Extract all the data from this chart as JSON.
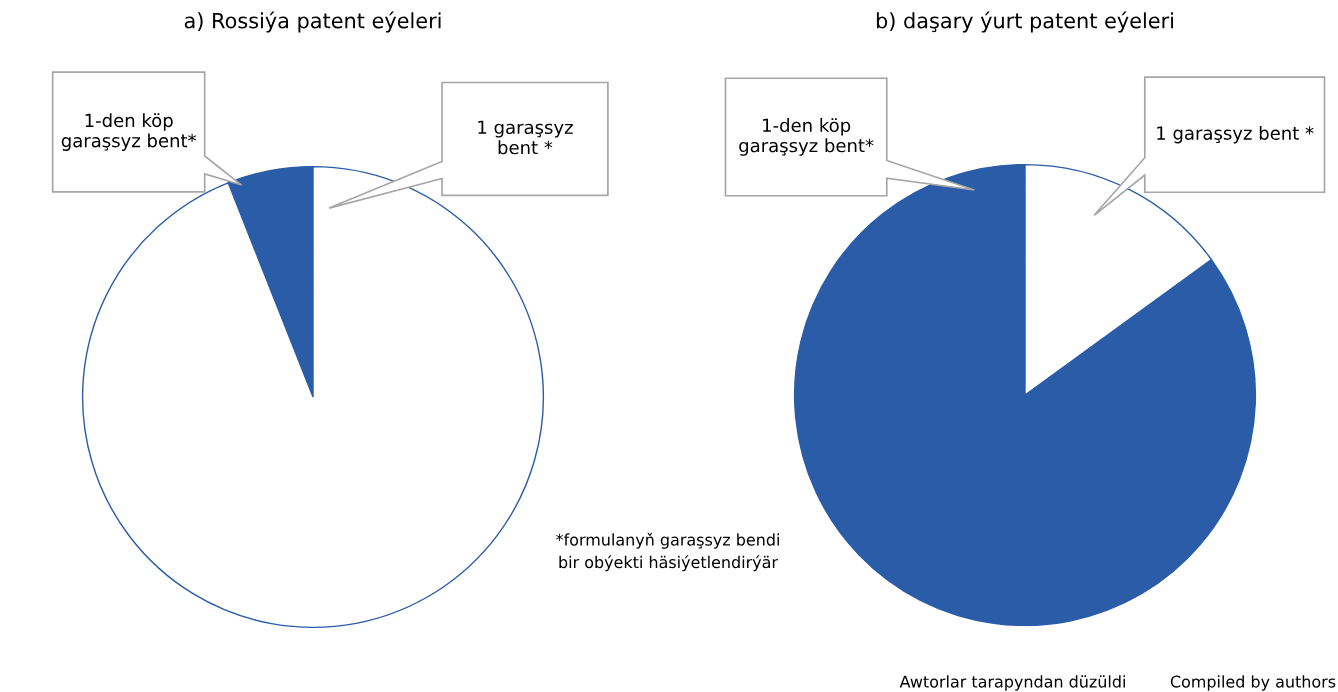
{
  "chart_data": [
    {
      "type": "pie",
      "title": "a) Rossiýa patent eýeleri",
      "categories": [
        "1-den köp\ngaraşsyz bent*",
        "1 garaşsyz\nbent *"
      ],
      "values": [
        6,
        94
      ],
      "colors": [
        "#2a5ca8",
        "#ffffff"
      ],
      "annotations": [
        "*formulanyň garaşsyz bendi\nbir obýekti häsiýetlendirýär"
      ]
    },
    {
      "type": "pie",
      "title": "b) daşary ýurt patent eýeleri",
      "categories": [
        "1-den köp\ngaraşsyz bent*",
        "1 garaşsyz bent *"
      ],
      "values": [
        85,
        15
      ],
      "colors": [
        "#2a5ca8",
        "#ffffff"
      ],
      "annotations": [
        "Awtorlar tarapyndan düzüldi",
        "Compiled by authors"
      ]
    }
  ]
}
